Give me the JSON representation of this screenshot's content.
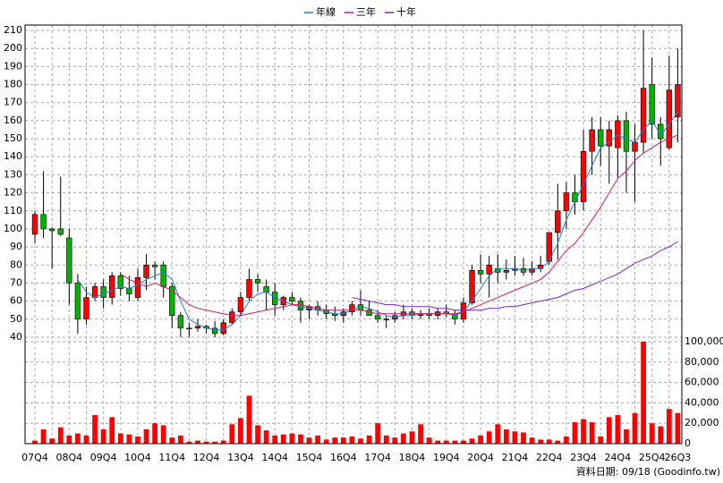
{
  "chart_data": {
    "type": "candlestick",
    "legend": "top",
    "footer": "資料日期: 09/18 (Goodinfo.tw)",
    "categories": [
      "07Q4",
      null,
      null,
      null,
      "08Q4",
      null,
      null,
      null,
      "09Q4",
      null,
      null,
      null,
      "10Q4",
      null,
      null,
      null,
      "11Q4",
      null,
      null,
      null,
      "12Q4",
      null,
      null,
      null,
      "13Q4",
      null,
      null,
      null,
      "14Q4",
      null,
      null,
      null,
      "15Q4",
      null,
      null,
      null,
      "16Q4",
      null,
      null,
      null,
      "17Q4",
      null,
      null,
      null,
      "18Q4",
      null,
      null,
      null,
      "19Q4",
      null,
      null,
      null,
      "20Q4",
      null,
      null,
      null,
      "21Q4",
      null,
      null,
      null,
      "22Q4",
      null,
      null,
      null,
      "23Q4",
      null,
      null,
      null,
      "24Q4",
      null,
      null,
      null,
      "25Q4",
      null,
      null,
      "26Q3"
    ],
    "open": [
      97,
      108,
      100,
      100,
      95,
      70,
      50,
      62,
      68,
      62,
      74,
      67,
      62,
      73,
      80,
      80,
      68,
      52,
      45,
      45,
      46,
      45,
      42,
      48,
      54,
      62,
      72,
      68,
      65,
      58,
      62,
      60,
      55,
      57,
      55,
      53,
      52,
      54,
      58,
      55,
      52,
      50,
      50,
      52,
      54,
      52,
      53,
      52,
      54,
      53,
      50,
      59,
      77,
      75,
      78,
      76,
      77,
      78,
      76,
      78,
      82,
      98,
      110,
      120,
      115,
      143,
      155,
      146,
      145,
      160,
      143,
      148,
      180,
      158,
      145,
      162
    ],
    "high": [
      110,
      132,
      101,
      129,
      100,
      75,
      68,
      70,
      72,
      76,
      76,
      74,
      78,
      86,
      82,
      82,
      70,
      54,
      48,
      50,
      47,
      49,
      50,
      56,
      65,
      78,
      75,
      72,
      70,
      63,
      65,
      62,
      58,
      60,
      58,
      57,
      56,
      60,
      66,
      60,
      55,
      52,
      54,
      58,
      56,
      55,
      56,
      56,
      58,
      55,
      62,
      80,
      86,
      85,
      86,
      83,
      85,
      84,
      82,
      85,
      98,
      125,
      126,
      130,
      155,
      162,
      162,
      160,
      163,
      165,
      158,
      210,
      195,
      162,
      196,
      200
    ],
    "low": [
      92,
      95,
      78,
      96,
      58,
      42,
      47,
      60,
      56,
      58,
      63,
      60,
      60,
      66,
      72,
      62,
      45,
      40,
      40,
      43,
      42,
      40,
      41,
      47,
      52,
      60,
      65,
      55,
      52,
      55,
      58,
      48,
      50,
      52,
      50,
      49,
      48,
      52,
      52,
      52,
      48,
      45,
      48,
      50,
      50,
      50,
      50,
      50,
      51,
      47,
      48,
      58,
      70,
      62,
      70,
      72,
      74,
      74,
      74,
      76,
      80,
      83,
      100,
      108,
      110,
      130,
      135,
      125,
      128,
      120,
      115,
      142,
      150,
      135,
      144,
      148
    ],
    "close": [
      108,
      100,
      99,
      97,
      70,
      50,
      62,
      68,
      62,
      74,
      67,
      64,
      73,
      80,
      79,
      68,
      52,
      45,
      45,
      46,
      45,
      42,
      48,
      54,
      62,
      72,
      70,
      65,
      58,
      62,
      60,
      55,
      57,
      55,
      53,
      52,
      54,
      58,
      55,
      52,
      50,
      50,
      52,
      54,
      52,
      53,
      52,
      54,
      53,
      50,
      59,
      77,
      75,
      80,
      76,
      77,
      78,
      76,
      78,
      80,
      98,
      110,
      120,
      115,
      143,
      155,
      146,
      155,
      160,
      143,
      148,
      178,
      158,
      150,
      177,
      180
    ],
    "up_color": "#ff0000",
    "down_color": "#00b400",
    "ylim": [
      37,
      213
    ],
    "yticks": [
      40,
      50,
      60,
      70,
      80,
      90,
      100,
      110,
      120,
      130,
      140,
      150,
      160,
      170,
      180,
      190,
      200,
      210
    ],
    "grid": true,
    "series": [
      {
        "name": "年線",
        "color": "#1f7fd4",
        "values": [
          null,
          null,
          null,
          null,
          null,
          72,
          65,
          62,
          64,
          66,
          68,
          67,
          69,
          72,
          74,
          76,
          72,
          60,
          50,
          47,
          45,
          44,
          44,
          47,
          52,
          60,
          64,
          65,
          62,
          60,
          58,
          57,
          56,
          55,
          54,
          53,
          53,
          55,
          57,
          56,
          54,
          52,
          51,
          52,
          52,
          53,
          53,
          53,
          53,
          52,
          54,
          60,
          67,
          74,
          78,
          78,
          78,
          77,
          78,
          78,
          82,
          92,
          105,
          115,
          125,
          135,
          145,
          148,
          152,
          150,
          148,
          155,
          160,
          152,
          158,
          165
        ]
      },
      {
        "name": "三年",
        "color": "#e0185a",
        "values": [
          null,
          null,
          null,
          null,
          null,
          null,
          null,
          null,
          null,
          null,
          75,
          72,
          70,
          68,
          70,
          68,
          66,
          62,
          58,
          56,
          55,
          54,
          53,
          52,
          52,
          53,
          54,
          55,
          56,
          57,
          58,
          58,
          57,
          56,
          55,
          55,
          55,
          55,
          55,
          54,
          53,
          53,
          53,
          53,
          53,
          53,
          53,
          53,
          53,
          53,
          54,
          56,
          58,
          60,
          62,
          64,
          66,
          68,
          70,
          72,
          76,
          82,
          88,
          92,
          98,
          105,
          112,
          120,
          128,
          132,
          138,
          142,
          145,
          148,
          150,
          152
        ]
      },
      {
        "name": "十年",
        "color": "#7a22c8",
        "values": [
          null,
          null,
          null,
          null,
          null,
          null,
          null,
          null,
          null,
          null,
          null,
          null,
          null,
          null,
          null,
          null,
          null,
          null,
          null,
          null,
          null,
          null,
          null,
          null,
          null,
          null,
          null,
          null,
          null,
          null,
          null,
          null,
          null,
          null,
          null,
          null,
          null,
          62,
          61,
          60,
          59,
          58,
          58,
          57,
          57,
          57,
          57,
          56,
          56,
          55,
          55,
          55,
          55,
          56,
          56,
          57,
          57,
          58,
          59,
          60,
          61,
          62,
          64,
          66,
          67,
          69,
          71,
          73,
          75,
          78,
          81,
          83,
          85,
          88,
          90,
          93
        ]
      }
    ],
    "volume": {
      "color": "#ff0000",
      "values": [
        3000,
        14000,
        5000,
        16000,
        8000,
        10000,
        8000,
        28000,
        14000,
        26000,
        10000,
        9000,
        7000,
        14000,
        20000,
        18000,
        6000,
        8000,
        2000,
        3000,
        2000,
        2000,
        3000,
        19000,
        25000,
        47000,
        18000,
        13000,
        8000,
        9000,
        10000,
        9000,
        6000,
        8000,
        4000,
        6000,
        6000,
        7000,
        5000,
        8000,
        20000,
        8000,
        6000,
        10000,
        12000,
        19000,
        6000,
        3000,
        3000,
        3000,
        3000,
        5000,
        8000,
        12000,
        19000,
        14000,
        12000,
        11000,
        6000,
        4000,
        4000,
        3000,
        7000,
        21000,
        24000,
        21000,
        7000,
        26000,
        28000,
        14000,
        30000,
        100000,
        20000,
        17000,
        34000,
        30000
      ],
      "ylim": [
        0,
        100000
      ],
      "yticks": [
        0,
        {
          "value": 20000,
          "label": "20,000"
        },
        {
          "value": 40000,
          "label": "40,000"
        },
        {
          "value": 60000,
          "label": "60,000"
        },
        {
          "value": 80000,
          "label": "80,000"
        },
        {
          "value": 100000,
          "label": "100,000"
        }
      ]
    }
  }
}
